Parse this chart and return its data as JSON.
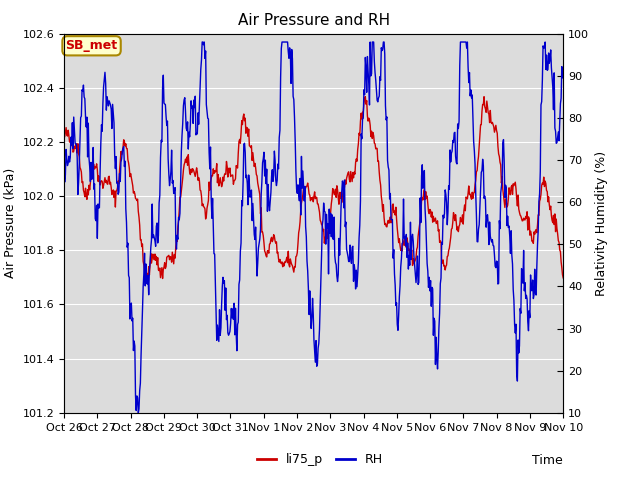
{
  "title": "Air Pressure and RH",
  "xlabel": "Time",
  "ylabel_left": "Air Pressure (kPa)",
  "ylabel_right": "Relativity Humidity (%)",
  "ylim_left": [
    101.2,
    102.6
  ],
  "ylim_right": [
    10,
    100
  ],
  "yticks_left": [
    101.2,
    101.4,
    101.6,
    101.8,
    102.0,
    102.2,
    102.4,
    102.6
  ],
  "yticks_right": [
    10,
    20,
    30,
    40,
    50,
    60,
    70,
    80,
    90,
    100
  ],
  "xtick_labels": [
    "Oct 26",
    "Oct 27",
    "Oct 28",
    "Oct 29",
    "Oct 30",
    "Oct 31",
    "Nov 1",
    "Nov 2",
    "Nov 3",
    "Nov 4",
    "Nov 5",
    "Nov 6",
    "Nov 7",
    "Nov 8",
    "Nov 9",
    "Nov 10"
  ],
  "color_pressure": "#cc0000",
  "color_rh": "#0000cc",
  "legend_labels": [
    "li75_p",
    "RH"
  ],
  "label_box_text": "SB_met",
  "label_box_facecolor": "#ffffcc",
  "label_box_edgecolor": "#aa8800",
  "label_box_textcolor": "#cc0000",
  "background_color": "#ffffff",
  "plot_bg_color": "#dcdcdc",
  "grid_color": "#ffffff",
  "title_fontsize": 11,
  "axis_fontsize": 9,
  "tick_fontsize": 8
}
